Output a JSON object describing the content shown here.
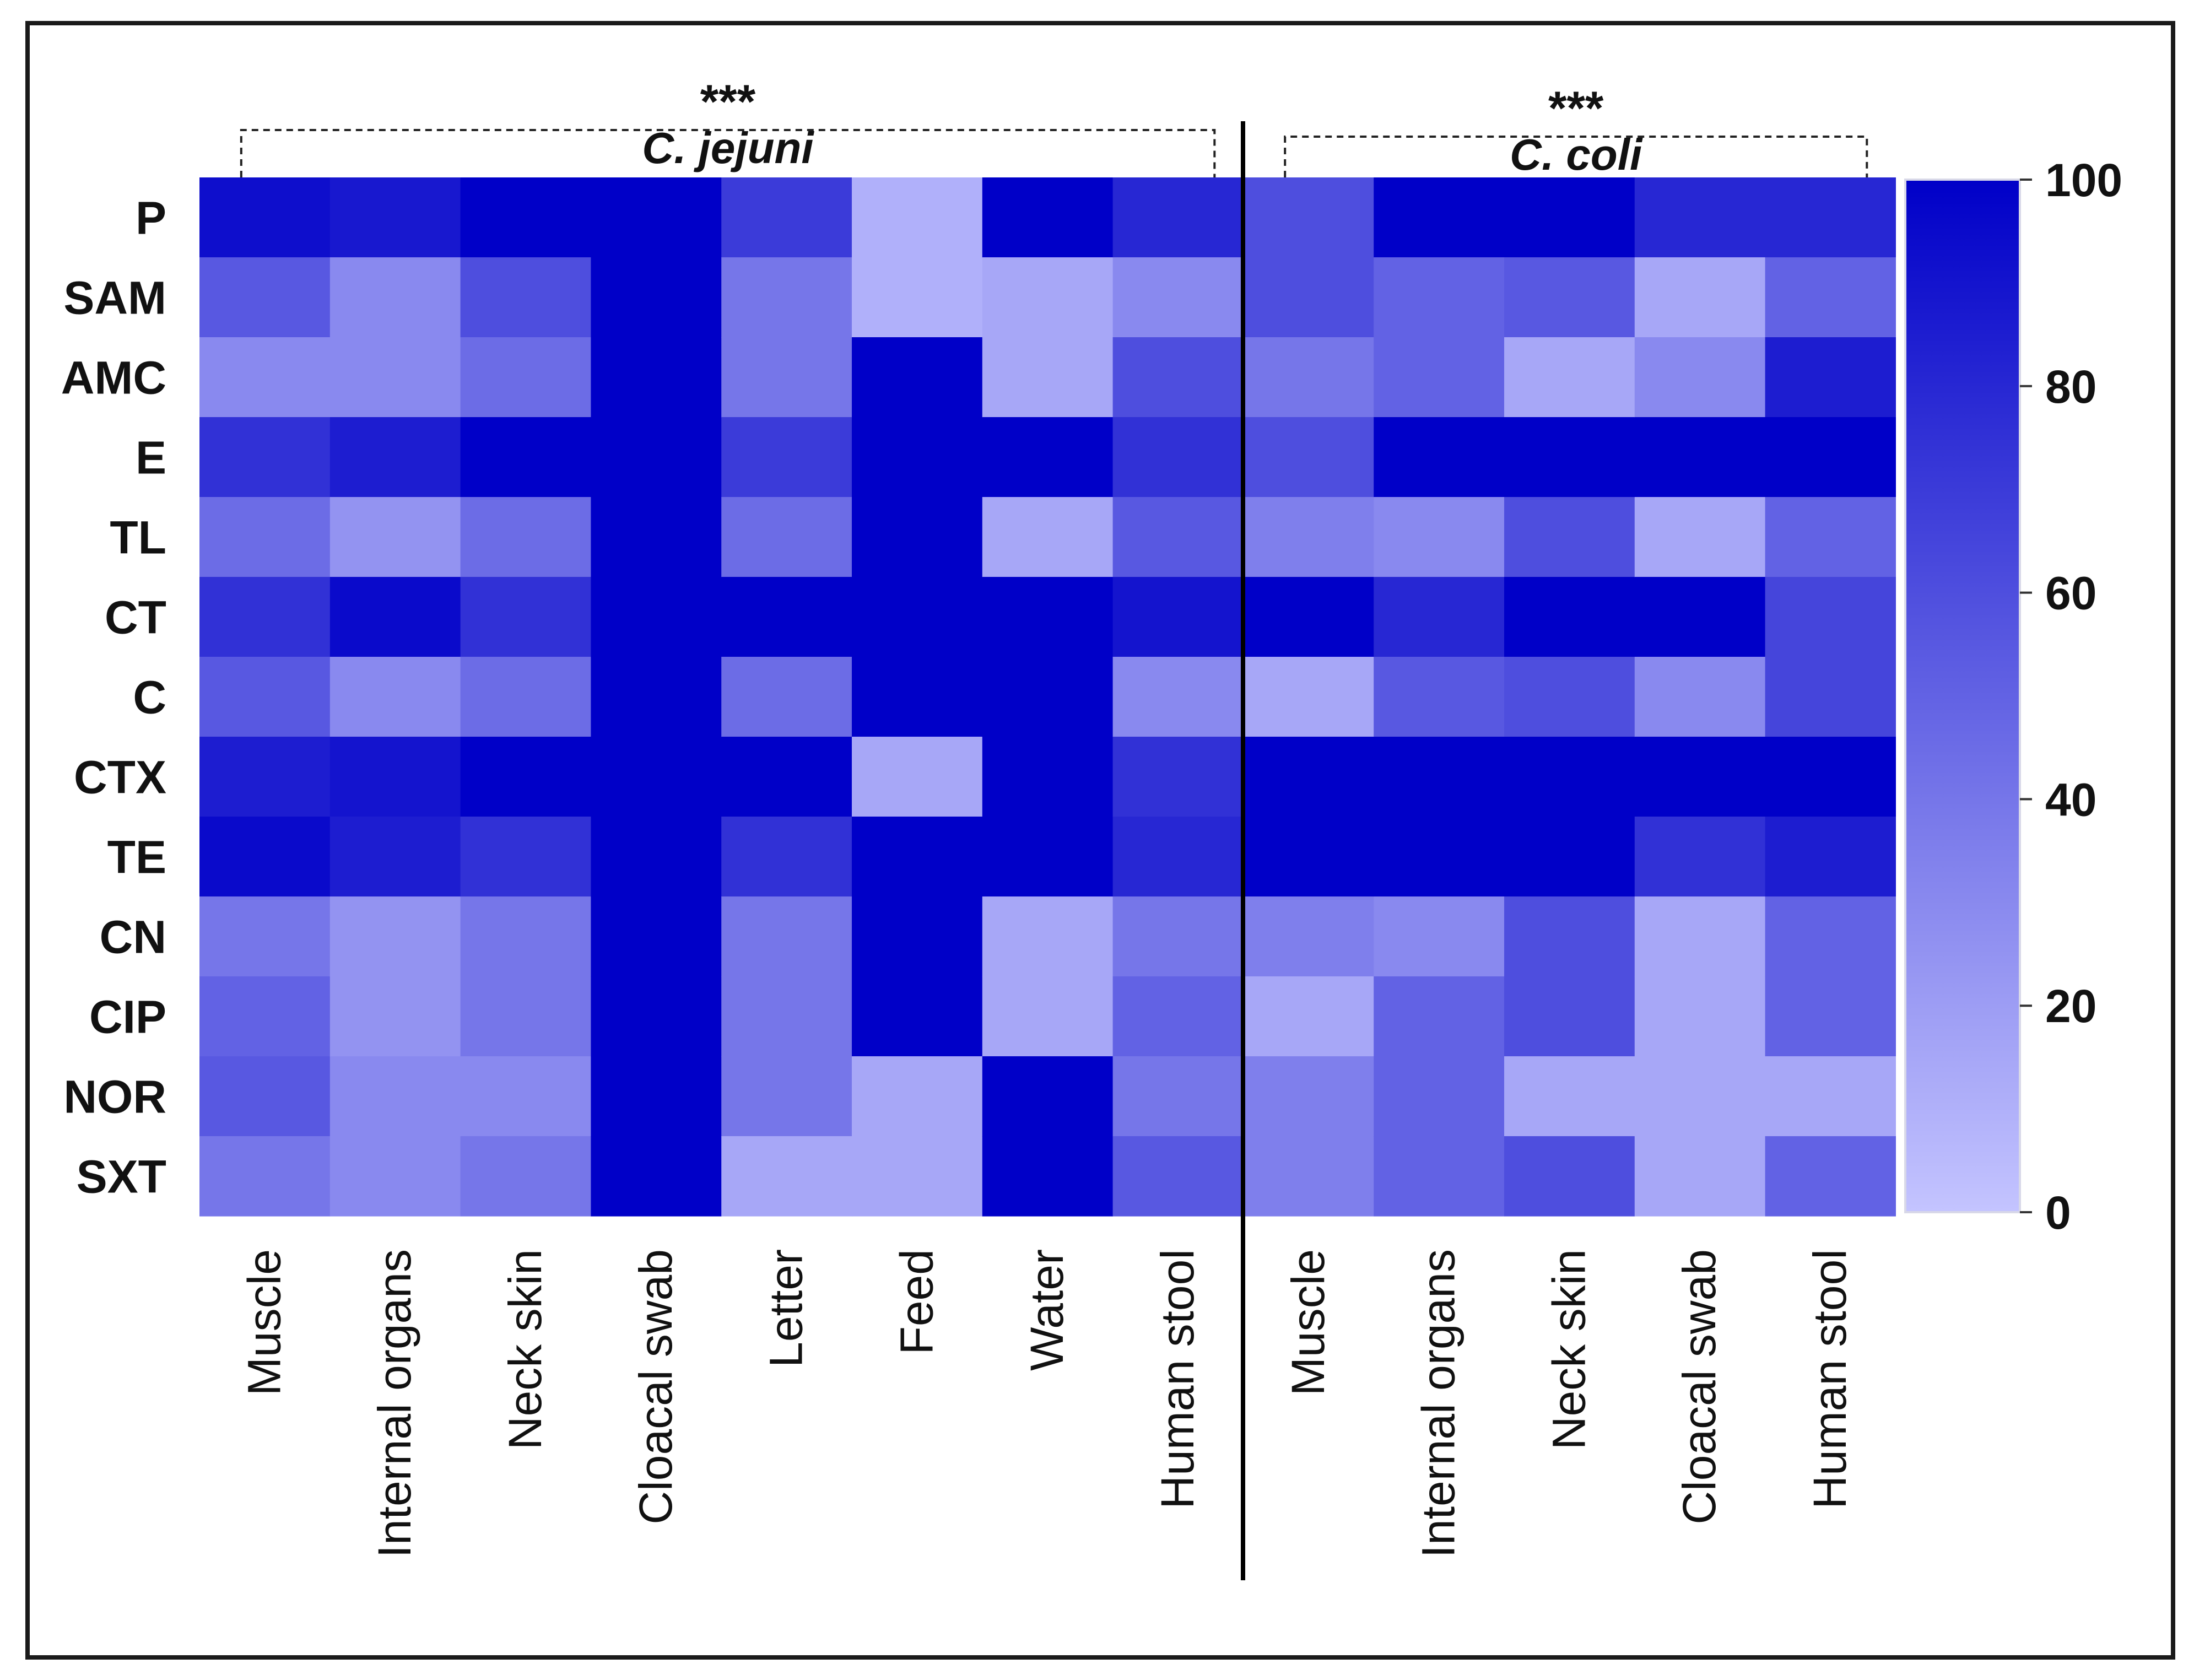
{
  "chart_data": {
    "type": "heatmap",
    "rows": [
      "P",
      "SAM",
      "AMC",
      "E",
      "TL",
      "CT",
      "C",
      "CTX",
      "TE",
      "CN",
      "CIP",
      "NOR",
      "SXT"
    ],
    "groups": [
      {
        "name": "C. jejuni",
        "significance": "***",
        "columns": [
          "Muscle",
          "Internal organs",
          "Neck skin",
          "Cloacal swab",
          "Letter",
          "Feed",
          "Water",
          "Human stool"
        ],
        "values": [
          [
            93,
            88,
            100,
            100,
            70,
            10,
            100,
            80
          ],
          [
            55,
            30,
            60,
            100,
            40,
            10,
            15,
            30
          ],
          [
            30,
            30,
            45,
            100,
            40,
            100,
            15,
            60
          ],
          [
            75,
            85,
            100,
            100,
            70,
            100,
            100,
            75
          ],
          [
            45,
            25,
            45,
            100,
            45,
            100,
            15,
            55
          ],
          [
            75,
            95,
            75,
            100,
            100,
            100,
            100,
            90
          ],
          [
            55,
            30,
            45,
            100,
            45,
            100,
            100,
            30
          ],
          [
            85,
            90,
            100,
            100,
            100,
            15,
            100,
            75
          ],
          [
            95,
            85,
            75,
            100,
            75,
            100,
            100,
            80
          ],
          [
            40,
            25,
            40,
            100,
            40,
            100,
            15,
            40
          ],
          [
            50,
            25,
            40,
            100,
            40,
            100,
            15,
            50
          ],
          [
            55,
            30,
            30,
            100,
            40,
            15,
            100,
            40
          ],
          [
            40,
            30,
            40,
            100,
            15,
            15,
            100,
            55
          ]
        ]
      },
      {
        "name": "C. coli",
        "significance": "***",
        "columns": [
          "Muscle",
          "Internal organs",
          "Neck skin",
          "Cloacal swab",
          "Human stool"
        ],
        "values": [
          [
            60,
            100,
            100,
            80,
            80
          ],
          [
            60,
            50,
            55,
            15,
            50
          ],
          [
            40,
            50,
            15,
            30,
            85
          ],
          [
            60,
            100,
            100,
            100,
            100
          ],
          [
            35,
            30,
            60,
            15,
            50
          ],
          [
            100,
            80,
            100,
            100,
            65
          ],
          [
            15,
            55,
            60,
            30,
            65
          ],
          [
            100,
            100,
            100,
            100,
            100
          ],
          [
            100,
            100,
            100,
            75,
            85
          ],
          [
            35,
            30,
            60,
            15,
            50
          ],
          [
            15,
            50,
            60,
            15,
            50
          ],
          [
            35,
            50,
            15,
            15,
            15
          ],
          [
            35,
            50,
            60,
            15,
            50
          ]
        ]
      }
    ],
    "colorbar": {
      "min": 0,
      "max": 100,
      "ticks": [
        "0",
        "20",
        "40",
        "60",
        "80",
        "100"
      ],
      "low_color": "#c4c4ff",
      "high_color": "#0000c8"
    },
    "title": "",
    "xlabel": "",
    "ylabel": "",
    "grid": false,
    "legend": "right"
  }
}
